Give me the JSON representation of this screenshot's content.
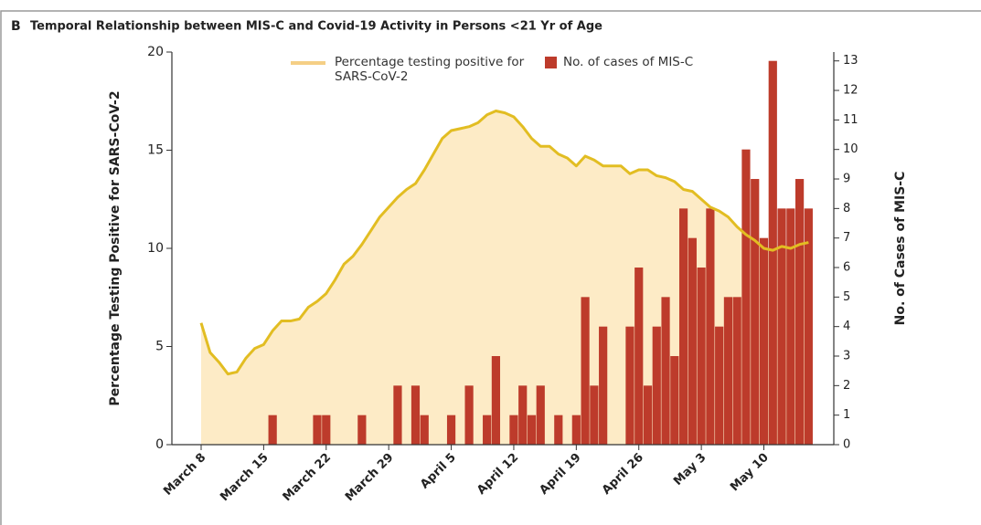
{
  "chart_data": {
    "type": "combo",
    "panel": "B",
    "title": "Temporal Relationship between MIS-C and Covid-19 Activity in Persons <21 Yr of Age",
    "ylabel": "Percentage Testing Positive for SARS-CoV-2",
    "y2label": "No. of Cases of MIS-C",
    "categories": [
      "March 8",
      null,
      null,
      null,
      null,
      null,
      null,
      "March 15",
      null,
      null,
      null,
      null,
      null,
      null,
      "March 22",
      null,
      null,
      null,
      null,
      null,
      null,
      "March 29",
      null,
      null,
      null,
      null,
      null,
      null,
      "April 5",
      null,
      null,
      null,
      null,
      null,
      null,
      "April 12",
      null,
      null,
      null,
      null,
      null,
      null,
      "April 19",
      null,
      null,
      null,
      null,
      null,
      null,
      "April 26",
      null,
      null,
      null,
      null,
      null,
      null,
      "May 3",
      null,
      null,
      null,
      null,
      null,
      null,
      "May 10",
      null,
      null,
      null,
      null,
      null
    ],
    "series": [
      {
        "name": "Percentage testing positive for SARS-CoV-2",
        "type": "area",
        "color": "#e2bd22",
        "area_color": "#fdebc6",
        "values": [
          6.2,
          4.7,
          4.2,
          3.6,
          3.7,
          4.4,
          4.9,
          5.1,
          5.8,
          6.3,
          6.3,
          6.4,
          7.0,
          7.3,
          7.7,
          8.4,
          9.2,
          9.6,
          10.2,
          10.9,
          11.6,
          12.1,
          12.6,
          13.0,
          13.3,
          14.0,
          14.8,
          15.6,
          16.0,
          16.1,
          16.2,
          16.4,
          16.8,
          17.0,
          16.9,
          16.7,
          16.2,
          15.6,
          15.2,
          15.2,
          14.8,
          14.6,
          14.2,
          14.7,
          14.5,
          14.2,
          14.2,
          14.2,
          13.8,
          14.0,
          14.0,
          13.7,
          13.6,
          13.4,
          13.0,
          12.9,
          12.5,
          12.1,
          11.9,
          11.6,
          11.1,
          10.7,
          10.4,
          10.0,
          9.9,
          10.1,
          10.0,
          10.2,
          10.3
        ]
      },
      {
        "name": "No. of cases of MIS-C",
        "type": "bar",
        "axis": "y2",
        "color": "#bd3b2b",
        "values": [
          0,
          0,
          0,
          0,
          0,
          0,
          0,
          0,
          1,
          0,
          0,
          0,
          0,
          1,
          1,
          0,
          0,
          0,
          1,
          0,
          0,
          0,
          2,
          0,
          2,
          1,
          0,
          0,
          1,
          0,
          2,
          0,
          1,
          3,
          0,
          1,
          2,
          1,
          2,
          0,
          1,
          0,
          1,
          5,
          2,
          4,
          0,
          0,
          4,
          6,
          2,
          4,
          5,
          3,
          8,
          7,
          6,
          8,
          4,
          5,
          5,
          10,
          9,
          7,
          13,
          8,
          8,
          9,
          8
        ]
      }
    ],
    "ylim": [
      0,
      20
    ],
    "yticks": [
      0,
      5,
      10,
      15,
      20
    ],
    "y2lim": [
      0,
      13.3
    ],
    "y2ticks": [
      0,
      1,
      2,
      3,
      4,
      5,
      6,
      7,
      8,
      9,
      10,
      11,
      12,
      13
    ],
    "grid": false
  }
}
